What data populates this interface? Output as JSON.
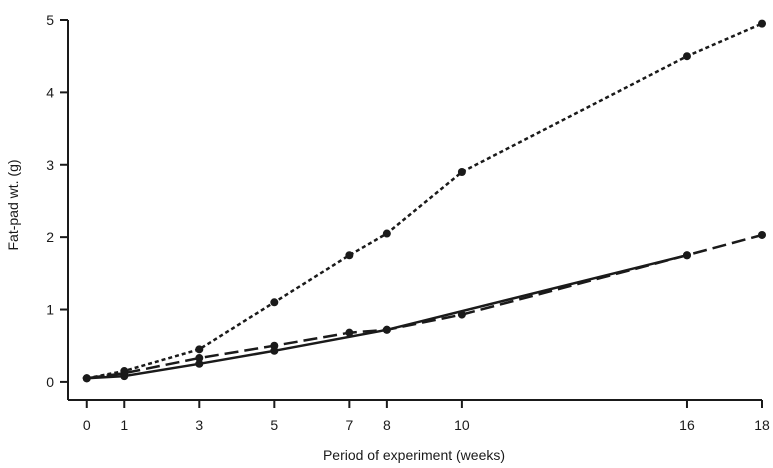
{
  "chart_data": {
    "type": "line",
    "title": "",
    "xlabel": "Period of experiment (weeks)",
    "ylabel": "Fat-pad wt. (g)",
    "xlim": [
      -0.5,
      18
    ],
    "ylim": [
      -0.25,
      5
    ],
    "xticks": [
      0,
      1,
      3,
      5,
      7,
      8,
      10,
      16,
      18
    ],
    "yticks": [
      0,
      1,
      2,
      3,
      4,
      5
    ],
    "grid": false,
    "legend": "none",
    "series": [
      {
        "style": "dotted",
        "color": "#1a1a1a",
        "markers": true,
        "x": [
          0,
          1,
          3,
          5,
          7,
          8,
          10,
          16,
          18
        ],
        "y": [
          0.05,
          0.15,
          0.45,
          1.1,
          1.75,
          2.05,
          2.9,
          4.5,
          4.95
        ]
      },
      {
        "style": "dashed",
        "color": "#1a1a1a",
        "markers": true,
        "x": [
          0,
          1,
          3,
          5,
          7,
          8,
          10,
          16,
          18
        ],
        "y": [
          0.05,
          0.12,
          0.33,
          0.5,
          0.68,
          0.72,
          0.93,
          1.75,
          2.03
        ]
      },
      {
        "style": "solid",
        "color": "#1a1a1a",
        "markers": true,
        "x": [
          0,
          1,
          3,
          5,
          8,
          16
        ],
        "y": [
          0.05,
          0.08,
          0.25,
          0.43,
          0.72,
          1.75
        ]
      }
    ]
  }
}
